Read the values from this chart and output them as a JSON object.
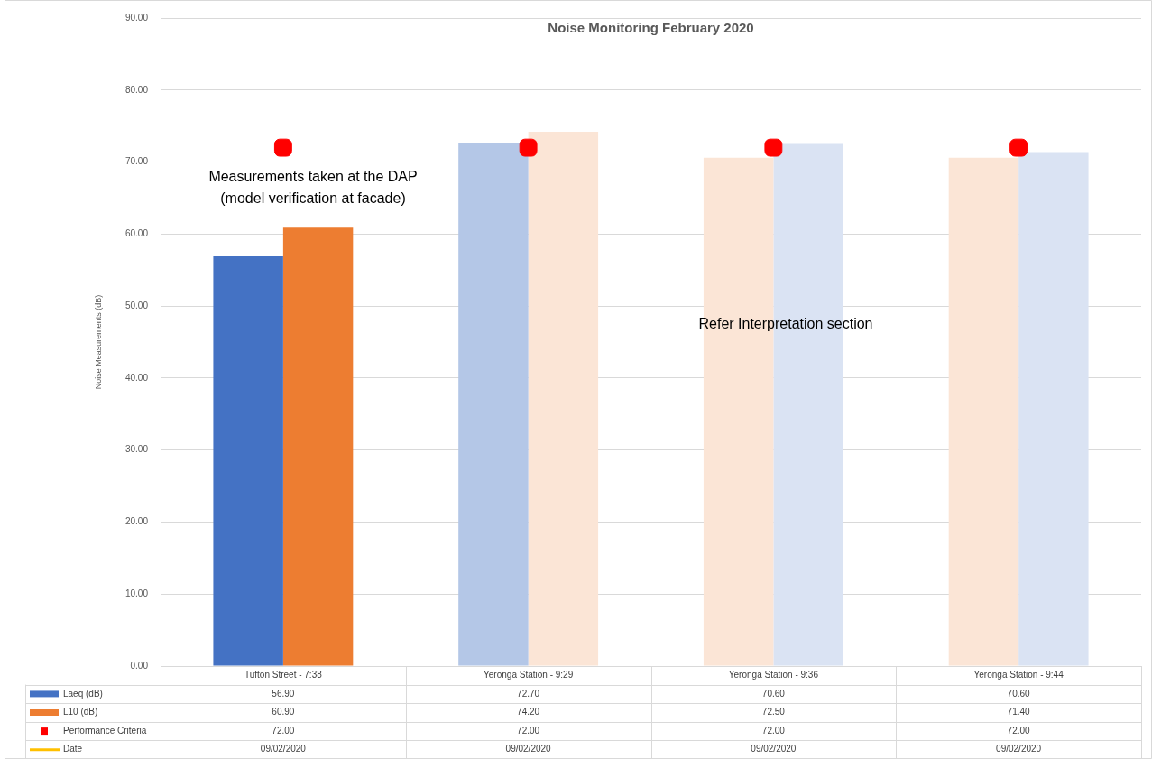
{
  "chart_data": {
    "type": "bar",
    "title": "Noise Monitoring February 2020",
    "ylabel": "Noise Measurements (dB)",
    "categories": [
      "Tufton Street - 7:38",
      "Yeronga Station - 9:29",
      "Yeronga Station - 9:36",
      "Yeronga Station - 9:44"
    ],
    "series": [
      {
        "name": "Laeq (dB)",
        "color": "#4472c4",
        "colors": [
          "#4472c4",
          "#b4c7e7",
          "#fbe5d6",
          "#fbe5d6"
        ],
        "values": [
          56.9,
          72.7,
          70.6,
          70.6
        ],
        "value_labels": [
          "56.90",
          "72.70",
          "70.60",
          "70.60"
        ]
      },
      {
        "name": "L10 (dB)",
        "color": "#ed7d31",
        "colors": [
          "#ed7d31",
          "#fbe5d6",
          "#dae3f3",
          "#dae3f3"
        ],
        "values": [
          60.9,
          74.2,
          72.5,
          71.4
        ],
        "value_labels": [
          "60.90",
          "74.20",
          "72.50",
          "71.40"
        ]
      },
      {
        "name": "Performance Criteria",
        "type": "scatter",
        "marker": "square",
        "color": "#ff0000",
        "x": [
          "Tufton Street - 7:38",
          "Yeronga Station - 9:29",
          "Yeronga Station - 9:36",
          "Yeronga Station - 9:44"
        ],
        "values": [
          72,
          72,
          72,
          72
        ],
        "value_labels": [
          "72.00",
          "72.00",
          "72.00",
          "72.00"
        ]
      },
      {
        "name": "Date",
        "type": "line",
        "color": "#ffc000",
        "values": [
          null,
          null,
          null,
          null
        ],
        "value_labels": [
          "09/02/2020",
          "09/02/2020",
          "09/02/2020",
          "09/02/2020"
        ]
      }
    ],
    "ylim": [
      0,
      90
    ],
    "yticks": [
      {
        "value": 0,
        "label": "0.00"
      },
      {
        "value": 10,
        "label": "10.00"
      },
      {
        "value": 20,
        "label": "20.00"
      },
      {
        "value": 30,
        "label": "30.00"
      },
      {
        "value": 40,
        "label": "40.00"
      },
      {
        "value": 50,
        "label": "50.00"
      },
      {
        "value": 60,
        "label": "60.00"
      },
      {
        "value": 70,
        "label": "70.00"
      },
      {
        "value": 80,
        "label": "80.00"
      },
      {
        "value": 90,
        "label": "90.00"
      }
    ],
    "grid": "y",
    "legend": "bottom",
    "annotations": [
      "Measurements taken at the DAP\n(model verification at facade)",
      "Refer Interpretation section"
    ]
  }
}
